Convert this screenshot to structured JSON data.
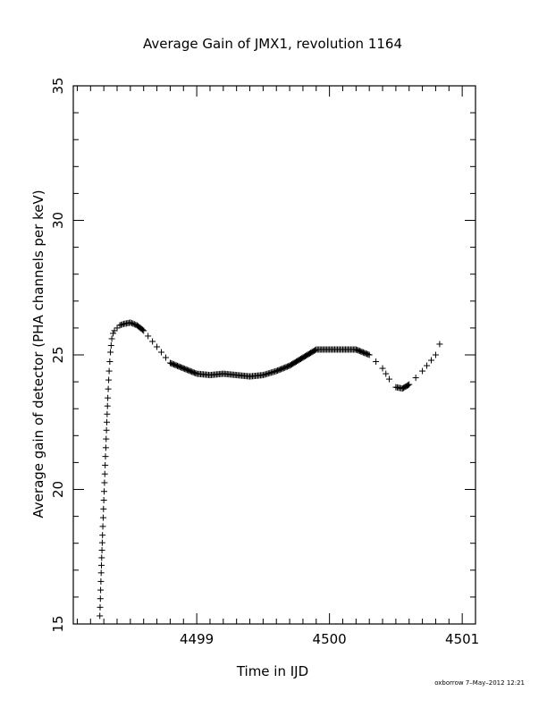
{
  "chart_data": {
    "type": "scatter",
    "title": "Average Gain of JMX1, revolution 1164",
    "xlabel": "Time in IJD",
    "ylabel": "Average gain of detector (PHA channels per keV)",
    "xlim": [
      4498.07,
      4501.1
    ],
    "ylim": [
      15,
      35
    ],
    "x_ticks": [
      4499,
      4500,
      4501
    ],
    "x_tick_labels": [
      "4499",
      "4500",
      "4501"
    ],
    "y_ticks": [
      15,
      20,
      25,
      30,
      35
    ],
    "y_tick_labels": [
      "15",
      "20",
      "25",
      "30",
      "35"
    ],
    "marker": "+",
    "marker_color": "#000000",
    "grid": false,
    "legend": "none",
    "series": [
      {
        "x": [
          4498.27,
          4498.28,
          4498.29,
          4498.3,
          4498.31,
          4498.32,
          4498.33,
          4498.34,
          4498.35,
          4498.36,
          4498.37,
          4498.38,
          4498.4,
          4498.42,
          4498.45,
          4498.5,
          4498.55,
          4498.6,
          4498.7,
          4498.8,
          4498.9,
          4499.0,
          4499.1,
          4499.2,
          4499.3,
          4499.4,
          4499.5,
          4499.6,
          4499.7,
          4499.8,
          4499.9,
          4500.0,
          4500.1,
          4500.2,
          4500.3,
          4500.4,
          4500.45,
          4500.5,
          4500.55,
          4500.6,
          4500.7,
          4500.8,
          4500.83
        ],
        "y": [
          15.3,
          16.9,
          18.3,
          19.6,
          20.9,
          22.2,
          23.4,
          24.4,
          25.1,
          25.6,
          25.8,
          25.9,
          26.0,
          26.1,
          26.15,
          26.2,
          26.1,
          25.9,
          25.3,
          24.7,
          24.5,
          24.3,
          24.25,
          24.3,
          24.25,
          24.2,
          24.25,
          24.4,
          24.6,
          24.9,
          25.2,
          25.2,
          25.2,
          25.2,
          25.0,
          24.5,
          24.1,
          23.8,
          23.75,
          23.9,
          24.4,
          25.0,
          25.4
        ]
      }
    ]
  },
  "footer": "oxborrow  7–May–2012 12:21"
}
